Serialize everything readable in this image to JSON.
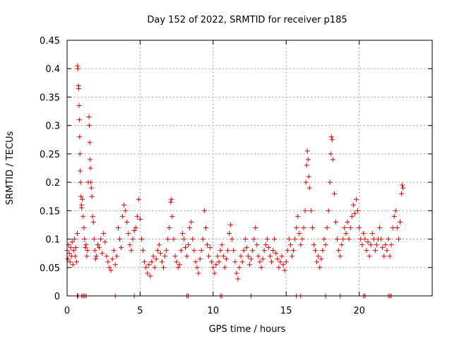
{
  "chart_data": {
    "type": "scatter",
    "title": "Day 152 of 2022, SRMTID for receiver p185",
    "xlabel": "GPS time / hours",
    "ylabel": "SRMTID / TECUs",
    "xlim": [
      0,
      25
    ],
    "ylim": [
      0,
      0.45
    ],
    "xticks": [
      0,
      5,
      10,
      15,
      20
    ],
    "xtick_labels": [
      "0",
      "5",
      "10",
      "15",
      "20"
    ],
    "yticks": [
      0,
      0.05,
      0.1,
      0.15,
      0.2,
      0.25,
      0.3,
      0.35,
      0.4,
      0.45
    ],
    "ytick_labels": [
      "0",
      "0.05",
      "0.1",
      "0.15",
      "0.2",
      "0.25",
      "0.3",
      "0.35",
      "0.4",
      "0.45"
    ],
    "grid": true,
    "marker": "+",
    "color": "#e00000",
    "series": [
      {
        "name": "SRMTID",
        "points": [
          [
            0.0,
            0.08
          ],
          [
            0.05,
            0.065
          ],
          [
            0.1,
            0.09
          ],
          [
            0.15,
            0.075
          ],
          [
            0.2,
            0.06
          ],
          [
            0.25,
            0.085
          ],
          [
            0.3,
            0.07
          ],
          [
            0.35,
            0.095
          ],
          [
            0.4,
            0.055
          ],
          [
            0.45,
            0.08
          ],
          [
            0.5,
            0.1
          ],
          [
            0.55,
            0.07
          ],
          [
            0.6,
            0.085
          ],
          [
            0.65,
            0.06
          ],
          [
            0.7,
            0.11
          ],
          [
            0.72,
            0.405
          ],
          [
            0.74,
            0.4
          ],
          [
            0.78,
            0.37
          ],
          [
            0.8,
            0.365
          ],
          [
            0.82,
            0.335
          ],
          [
            0.84,
            0.31
          ],
          [
            0.86,
            0.28
          ],
          [
            0.88,
            0.25
          ],
          [
            0.9,
            0.22
          ],
          [
            0.92,
            0.2
          ],
          [
            0.95,
            0.175
          ],
          [
            0.98,
            0.16
          ],
          [
            1.0,
            0.155
          ],
          [
            1.05,
            0.17
          ],
          [
            1.1,
            0.14
          ],
          [
            1.15,
            0.12
          ],
          [
            1.2,
            0.1
          ],
          [
            1.25,
            0.085
          ],
          [
            1.3,
            0.09
          ],
          [
            1.35,
            0.07
          ],
          [
            1.4,
            0.08
          ],
          [
            1.45,
            0.2
          ],
          [
            1.5,
            0.315
          ],
          [
            1.52,
            0.3
          ],
          [
            1.55,
            0.27
          ],
          [
            1.58,
            0.24
          ],
          [
            1.6,
            0.225
          ],
          [
            1.63,
            0.2
          ],
          [
            1.66,
            0.19
          ],
          [
            1.7,
            0.175
          ],
          [
            1.75,
            0.14
          ],
          [
            1.8,
            0.13
          ],
          [
            1.85,
            0.1
          ],
          [
            1.9,
            0.08
          ],
          [
            1.95,
            0.065
          ],
          [
            2.0,
            0.07
          ],
          [
            2.1,
            0.09
          ],
          [
            2.2,
            0.085
          ],
          [
            2.3,
            0.1
          ],
          [
            2.4,
            0.075
          ],
          [
            2.5,
            0.11
          ],
          [
            2.6,
            0.095
          ],
          [
            2.7,
            0.07
          ],
          [
            2.8,
            0.06
          ],
          [
            2.9,
            0.05
          ],
          [
            3.0,
            0.045
          ],
          [
            3.1,
            0.065
          ],
          [
            3.2,
            0.08
          ],
          [
            3.3,
            0.055
          ],
          [
            3.4,
            0.07
          ],
          [
            3.5,
            0.12
          ],
          [
            3.6,
            0.1
          ],
          [
            3.7,
            0.085
          ],
          [
            3.8,
            0.14
          ],
          [
            3.9,
            0.16
          ],
          [
            4.0,
            0.15
          ],
          [
            4.1,
            0.13
          ],
          [
            4.2,
            0.11
          ],
          [
            4.3,
            0.09
          ],
          [
            4.4,
            0.08
          ],
          [
            4.5,
            0.1
          ],
          [
            4.6,
            0.115
          ],
          [
            4.7,
            0.12
          ],
          [
            4.8,
            0.14
          ],
          [
            4.9,
            0.17
          ],
          [
            5.0,
            0.135
          ],
          [
            5.1,
            0.1
          ],
          [
            5.2,
            0.08
          ],
          [
            5.3,
            0.06
          ],
          [
            5.4,
            0.05
          ],
          [
            5.5,
            0.04
          ],
          [
            5.6,
            0.055
          ],
          [
            5.7,
            0.035
          ],
          [
            5.8,
            0.06
          ],
          [
            5.9,
            0.07
          ],
          [
            6.0,
            0.05
          ],
          [
            6.1,
            0.065
          ],
          [
            6.2,
            0.08
          ],
          [
            6.3,
            0.09
          ],
          [
            6.4,
            0.075
          ],
          [
            6.5,
            0.06
          ],
          [
            6.6,
            0.05
          ],
          [
            6.7,
            0.07
          ],
          [
            6.8,
            0.08
          ],
          [
            6.9,
            0.1
          ],
          [
            7.0,
            0.12
          ],
          [
            7.1,
            0.165
          ],
          [
            7.15,
            0.17
          ],
          [
            7.2,
            0.14
          ],
          [
            7.3,
            0.1
          ],
          [
            7.4,
            0.07
          ],
          [
            7.5,
            0.06
          ],
          [
            7.6,
            0.05
          ],
          [
            7.7,
            0.055
          ],
          [
            7.8,
            0.08
          ],
          [
            7.9,
            0.11
          ],
          [
            8.0,
            0.1
          ],
          [
            8.1,
            0.085
          ],
          [
            8.2,
            0.07
          ],
          [
            8.3,
            0.09
          ],
          [
            8.4,
            0.12
          ],
          [
            8.5,
            0.13
          ],
          [
            8.6,
            0.1
          ],
          [
            8.7,
            0.08
          ],
          [
            8.8,
            0.06
          ],
          [
            8.9,
            0.05
          ],
          [
            9.0,
            0.04
          ],
          [
            9.1,
            0.065
          ],
          [
            9.2,
            0.08
          ],
          [
            9.3,
            0.1
          ],
          [
            9.4,
            0.15
          ],
          [
            9.5,
            0.12
          ],
          [
            9.6,
            0.09
          ],
          [
            9.7,
            0.07
          ],
          [
            9.8,
            0.085
          ],
          [
            9.9,
            0.06
          ],
          [
            10.0,
            0.05
          ],
          [
            10.1,
            0.04
          ],
          [
            10.2,
            0.055
          ],
          [
            10.3,
            0.07
          ],
          [
            10.4,
            0.06
          ],
          [
            10.5,
            0.08
          ],
          [
            10.6,
            0.09
          ],
          [
            10.7,
            0.07
          ],
          [
            10.8,
            0.05
          ],
          [
            10.9,
            0.065
          ],
          [
            11.0,
            0.08
          ],
          [
            11.1,
            0.11
          ],
          [
            11.2,
            0.125
          ],
          [
            11.3,
            0.1
          ],
          [
            11.4,
            0.08
          ],
          [
            11.5,
            0.06
          ],
          [
            11.6,
            0.04
          ],
          [
            11.7,
            0.03
          ],
          [
            11.8,
            0.05
          ],
          [
            11.9,
            0.07
          ],
          [
            12.0,
            0.06
          ],
          [
            12.1,
            0.08
          ],
          [
            12.2,
            0.1
          ],
          [
            12.3,
            0.085
          ],
          [
            12.4,
            0.07
          ],
          [
            12.5,
            0.055
          ],
          [
            12.6,
            0.065
          ],
          [
            12.7,
            0.08
          ],
          [
            12.8,
            0.1
          ],
          [
            12.9,
            0.12
          ],
          [
            13.0,
            0.09
          ],
          [
            13.1,
            0.07
          ],
          [
            13.2,
            0.06
          ],
          [
            13.3,
            0.05
          ],
          [
            13.4,
            0.065
          ],
          [
            13.5,
            0.08
          ],
          [
            13.6,
            0.09
          ],
          [
            13.7,
            0.1
          ],
          [
            13.8,
            0.085
          ],
          [
            13.9,
            0.07
          ],
          [
            14.0,
            0.06
          ],
          [
            14.1,
            0.08
          ],
          [
            14.2,
            0.1
          ],
          [
            14.3,
            0.075
          ],
          [
            14.4,
            0.065
          ],
          [
            14.5,
            0.05
          ],
          [
            14.6,
            0.06
          ],
          [
            14.7,
            0.07
          ],
          [
            14.8,
            0.055
          ],
          [
            14.9,
            0.045
          ],
          [
            15.0,
            0.06
          ],
          [
            15.1,
            0.08
          ],
          [
            15.2,
            0.1
          ],
          [
            15.3,
            0.09
          ],
          [
            15.4,
            0.07
          ],
          [
            15.5,
            0.08
          ],
          [
            15.6,
            0.1
          ],
          [
            15.7,
            0.12
          ],
          [
            15.8,
            0.14
          ],
          [
            15.9,
            0.11
          ],
          [
            16.0,
            0.09
          ],
          [
            16.1,
            0.1
          ],
          [
            16.2,
            0.12
          ],
          [
            16.3,
            0.15
          ],
          [
            16.35,
            0.2
          ],
          [
            16.4,
            0.23
          ],
          [
            16.45,
            0.255
          ],
          [
            16.5,
            0.24
          ],
          [
            16.55,
            0.21
          ],
          [
            16.6,
            0.19
          ],
          [
            16.7,
            0.15
          ],
          [
            16.8,
            0.12
          ],
          [
            16.9,
            0.09
          ],
          [
            17.0,
            0.08
          ],
          [
            17.1,
            0.06
          ],
          [
            17.2,
            0.07
          ],
          [
            17.3,
            0.05
          ],
          [
            17.4,
            0.065
          ],
          [
            17.5,
            0.08
          ],
          [
            17.6,
            0.1
          ],
          [
            17.7,
            0.09
          ],
          [
            17.8,
            0.12
          ],
          [
            17.9,
            0.15
          ],
          [
            18.0,
            0.2
          ],
          [
            18.05,
            0.25
          ],
          [
            18.1,
            0.28
          ],
          [
            18.15,
            0.275
          ],
          [
            18.2,
            0.24
          ],
          [
            18.3,
            0.18
          ],
          [
            18.4,
            0.13
          ],
          [
            18.5,
            0.1
          ],
          [
            18.6,
            0.08
          ],
          [
            18.7,
            0.07
          ],
          [
            18.8,
            0.09
          ],
          [
            18.9,
            0.1
          ],
          [
            19.0,
            0.12
          ],
          [
            19.1,
            0.11
          ],
          [
            19.2,
            0.13
          ],
          [
            19.3,
            0.1
          ],
          [
            19.4,
            0.12
          ],
          [
            19.5,
            0.14
          ],
          [
            19.6,
            0.16
          ],
          [
            19.7,
            0.145
          ],
          [
            19.8,
            0.17
          ],
          [
            19.9,
            0.15
          ],
          [
            20.0,
            0.12
          ],
          [
            20.1,
            0.1
          ],
          [
            20.2,
            0.09
          ],
          [
            20.3,
            0.11
          ],
          [
            20.4,
            0.1
          ],
          [
            20.5,
            0.08
          ],
          [
            20.6,
            0.095
          ],
          [
            20.7,
            0.07
          ],
          [
            20.8,
            0.09
          ],
          [
            20.9,
            0.11
          ],
          [
            21.0,
            0.1
          ],
          [
            21.1,
            0.08
          ],
          [
            21.2,
            0.09
          ],
          [
            21.3,
            0.1
          ],
          [
            21.4,
            0.12
          ],
          [
            21.5,
            0.1
          ],
          [
            21.6,
            0.085
          ],
          [
            21.7,
            0.07
          ],
          [
            21.8,
            0.09
          ],
          [
            21.9,
            0.08
          ],
          [
            22.0,
            0.1
          ],
          [
            22.1,
            0.07
          ],
          [
            22.2,
            0.09
          ],
          [
            22.3,
            0.12
          ],
          [
            22.4,
            0.14
          ],
          [
            22.5,
            0.15
          ],
          [
            22.6,
            0.12
          ],
          [
            22.7,
            0.1
          ],
          [
            22.8,
            0.13
          ],
          [
            22.9,
            0.18
          ],
          [
            22.95,
            0.195
          ],
          [
            23.0,
            0.19
          ]
        ]
      },
      {
        "name": "zero",
        "points": [
          [
            0.7,
            0
          ],
          [
            0.75,
            0
          ],
          [
            1.0,
            0
          ],
          [
            1.1,
            0
          ],
          [
            1.2,
            0
          ],
          [
            1.3,
            0
          ],
          [
            3.3,
            0
          ],
          [
            4.6,
            0
          ],
          [
            8.2,
            0
          ],
          [
            8.3,
            0
          ],
          [
            10.5,
            0
          ],
          [
            10.6,
            0
          ],
          [
            12.6,
            0
          ],
          [
            15.7,
            0
          ],
          [
            16.0,
            0
          ],
          [
            17.7,
            0
          ],
          [
            18.7,
            0
          ],
          [
            20.3,
            0
          ],
          [
            20.4,
            0
          ],
          [
            22.0,
            0
          ],
          [
            22.1,
            0
          ],
          [
            22.2,
            0
          ]
        ]
      }
    ]
  }
}
